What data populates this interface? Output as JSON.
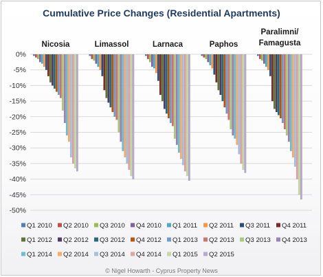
{
  "chart_data": {
    "type": "bar",
    "title": "Cumulative Price Changes (Residential Apartments)",
    "credit": "© Nigel Howarth - Cyprus Property News",
    "ylim": [
      -50,
      0
    ],
    "yticks": [
      0,
      -5,
      -10,
      -15,
      -20,
      -25,
      -30,
      -35,
      -40,
      -45,
      -50
    ],
    "ytick_labels": [
      "0%",
      "-5%",
      "-10%",
      "-15%",
      "-20%",
      "-25%",
      "-30%",
      "-35%",
      "-40%",
      "-45%",
      "-50%"
    ],
    "grid": true,
    "legend_position": "bottom",
    "categories": [
      "Nicosia",
      "Limassol",
      "Larnaca",
      "Paphos",
      "Paralimni/ Famagusta"
    ],
    "series": [
      {
        "name": "Q1 2010",
        "color": "#4f81bd",
        "values": [
          -0.5,
          -0.5,
          -0.5,
          -0.5,
          -0.5
        ]
      },
      {
        "name": "Q2 2010",
        "color": "#c0504d",
        "values": [
          -1.0,
          -1.5,
          -1.5,
          -1.0,
          -1.5
        ]
      },
      {
        "name": "Q3 2010",
        "color": "#9bbb59",
        "values": [
          -1.5,
          -2.0,
          -2.5,
          -1.5,
          -2.0
        ]
      },
      {
        "name": "Q4 2010",
        "color": "#8064a2",
        "values": [
          -2.5,
          -3.0,
          -4.0,
          -2.5,
          -3.0
        ]
      },
      {
        "name": "Q1 2011",
        "color": "#4bacc6",
        "values": [
          -3.0,
          -4.0,
          -4.5,
          -3.5,
          -4.0
        ]
      },
      {
        "name": "Q2 2011",
        "color": "#f79646",
        "values": [
          -4.0,
          -5.0,
          -6.0,
          -4.5,
          -5.0
        ]
      },
      {
        "name": "Q3 2011",
        "color": "#2c4d75",
        "values": [
          -5.0,
          -7.0,
          -8.5,
          -6.5,
          -7.0
        ]
      },
      {
        "name": "Q4 2011",
        "color": "#772c2a",
        "values": [
          -7.0,
          -11.5,
          -13.0,
          -9.0,
          -15.0
        ]
      },
      {
        "name": "Q1 2012",
        "color": "#5f7530",
        "values": [
          -9.0,
          -14.0,
          -15.0,
          -11.5,
          -17.5
        ]
      },
      {
        "name": "Q2 2012",
        "color": "#4d3b62",
        "values": [
          -10.0,
          -15.5,
          -17.5,
          -13.0,
          -18.5
        ]
      },
      {
        "name": "Q3 2012",
        "color": "#276a7c",
        "values": [
          -11.0,
          -17.0,
          -19.0,
          -15.0,
          -19.5
        ]
      },
      {
        "name": "Q4 2012",
        "color": "#b65708",
        "values": [
          -12.0,
          -18.5,
          -20.5,
          -17.0,
          -20.5
        ]
      },
      {
        "name": "Q1 2013",
        "color": "#729aca",
        "values": [
          -13.0,
          -20.0,
          -22.0,
          -19.0,
          -22.0
        ]
      },
      {
        "name": "Q2 2013",
        "color": "#cd7371",
        "values": [
          -14.0,
          -21.0,
          -23.0,
          -21.0,
          -24.0
        ]
      },
      {
        "name": "Q3 2013",
        "color": "#afc97a",
        "values": [
          -18.0,
          -25.0,
          -27.0,
          -24.0,
          -26.0
        ]
      },
      {
        "name": "Q4 2013",
        "color": "#9983b5",
        "values": [
          -22.0,
          -28.0,
          -29.0,
          -26.0,
          -28.0
        ]
      },
      {
        "name": "Q1 2014",
        "color": "#6fbdd1",
        "values": [
          -26.0,
          -31.0,
          -31.5,
          -27.0,
          -31.0
        ]
      },
      {
        "name": "Q2 2014",
        "color": "#f9ab6b",
        "values": [
          -28.0,
          -33.0,
          -33.5,
          -29.0,
          -33.0
        ]
      },
      {
        "name": "Q3 2014",
        "color": "#a7c0de",
        "values": [
          -33.0,
          -35.0,
          -35.5,
          -32.0,
          -36.0
        ]
      },
      {
        "name": "Q4 2014",
        "color": "#dca4a3",
        "values": [
          -35.0,
          -37.0,
          -37.5,
          -35.0,
          -40.0
        ]
      },
      {
        "name": "Q1 2015",
        "color": "#c6d9a5",
        "values": [
          -36.5,
          -39.0,
          -39.0,
          -37.0,
          -45.0
        ]
      },
      {
        "name": "Q2 2015",
        "color": "#b7a8cc",
        "values": [
          -37.5,
          -40.0,
          -40.5,
          -38.0,
          -46.5
        ]
      }
    ]
  }
}
